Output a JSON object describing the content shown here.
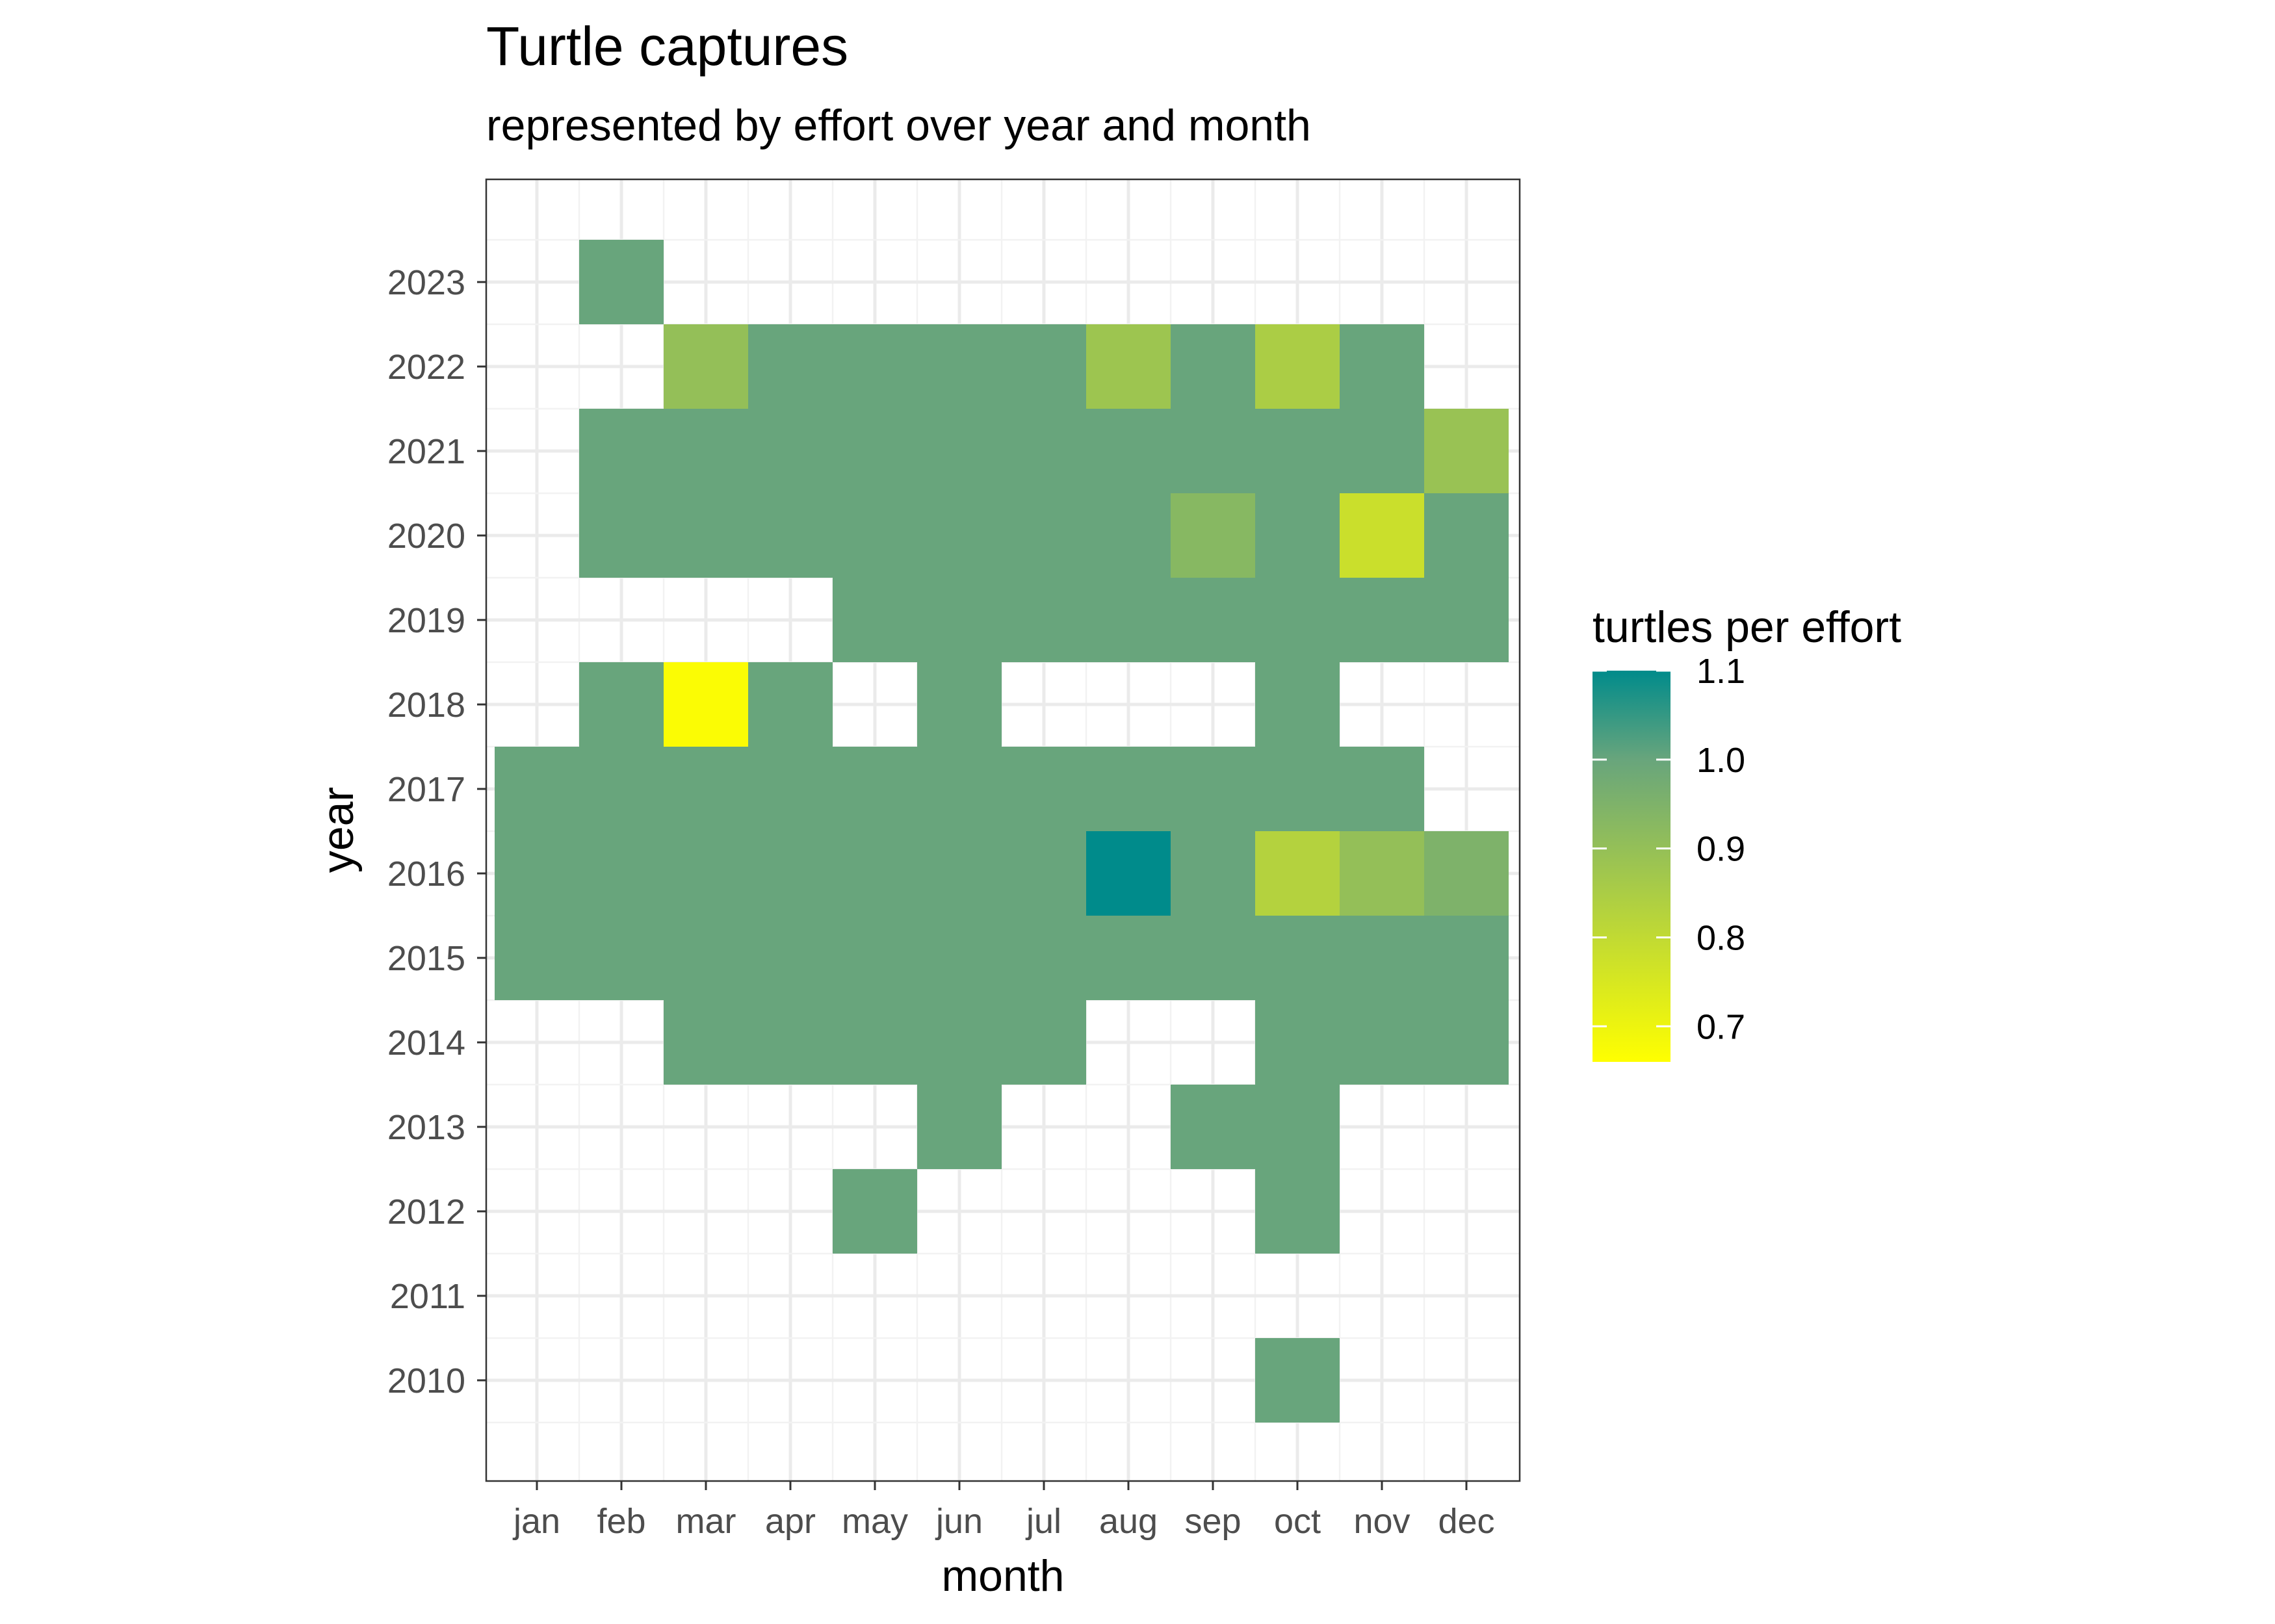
{
  "chart_data": {
    "type": "heatmap",
    "title": "Turtle captures",
    "subtitle": "represented by effort over year and month",
    "xlabel": "month",
    "ylabel": "year",
    "x_categories": [
      "jan",
      "feb",
      "mar",
      "apr",
      "may",
      "jun",
      "jul",
      "aug",
      "sep",
      "oct",
      "nov",
      "dec"
    ],
    "y_categories": [
      2010,
      2011,
      2012,
      2013,
      2014,
      2015,
      2016,
      2017,
      2018,
      2019,
      2020,
      2021,
      2022,
      2023
    ],
    "legend": {
      "title": "turtles per effort",
      "min": 0.66,
      "max": 1.1,
      "ticks": [
        1.1,
        1.0,
        0.9,
        0.8,
        0.7
      ],
      "colors": [
        "#ffff00",
        "#68a57c",
        "#008b8b"
      ]
    },
    "grid": true,
    "legend_position": "right",
    "cells": [
      {
        "year": 2023,
        "month": "feb",
        "value": 1.0
      },
      {
        "year": 2022,
        "month": "mar",
        "value": 0.9
      },
      {
        "year": 2022,
        "month": "apr",
        "value": 1.0
      },
      {
        "year": 2022,
        "month": "may",
        "value": 1.0
      },
      {
        "year": 2022,
        "month": "jun",
        "value": 1.0
      },
      {
        "year": 2022,
        "month": "jul",
        "value": 1.0
      },
      {
        "year": 2022,
        "month": "aug",
        "value": 0.88
      },
      {
        "year": 2022,
        "month": "sep",
        "value": 1.0
      },
      {
        "year": 2022,
        "month": "oct",
        "value": 0.85
      },
      {
        "year": 2022,
        "month": "nov",
        "value": 1.0
      },
      {
        "year": 2021,
        "month": "feb",
        "value": 1.0
      },
      {
        "year": 2021,
        "month": "mar",
        "value": 1.0
      },
      {
        "year": 2021,
        "month": "apr",
        "value": 1.0
      },
      {
        "year": 2021,
        "month": "may",
        "value": 1.0
      },
      {
        "year": 2021,
        "month": "jun",
        "value": 1.0
      },
      {
        "year": 2021,
        "month": "jul",
        "value": 1.0
      },
      {
        "year": 2021,
        "month": "aug",
        "value": 1.0
      },
      {
        "year": 2021,
        "month": "sep",
        "value": 1.0
      },
      {
        "year": 2021,
        "month": "oct",
        "value": 1.0
      },
      {
        "year": 2021,
        "month": "nov",
        "value": 1.0
      },
      {
        "year": 2021,
        "month": "dec",
        "value": 0.89
      },
      {
        "year": 2020,
        "month": "feb",
        "value": 1.0
      },
      {
        "year": 2020,
        "month": "mar",
        "value": 1.0
      },
      {
        "year": 2020,
        "month": "apr",
        "value": 1.0
      },
      {
        "year": 2020,
        "month": "may",
        "value": 1.0
      },
      {
        "year": 2020,
        "month": "jun",
        "value": 1.0
      },
      {
        "year": 2020,
        "month": "jul",
        "value": 1.0
      },
      {
        "year": 2020,
        "month": "aug",
        "value": 1.0
      },
      {
        "year": 2020,
        "month": "sep",
        "value": 0.93
      },
      {
        "year": 2020,
        "month": "oct",
        "value": 1.0
      },
      {
        "year": 2020,
        "month": "nov",
        "value": 0.78
      },
      {
        "year": 2020,
        "month": "dec",
        "value": 1.0
      },
      {
        "year": 2019,
        "month": "may",
        "value": 1.0
      },
      {
        "year": 2019,
        "month": "jun",
        "value": 1.0
      },
      {
        "year": 2019,
        "month": "jul",
        "value": 1.0
      },
      {
        "year": 2019,
        "month": "aug",
        "value": 1.0
      },
      {
        "year": 2019,
        "month": "sep",
        "value": 1.0
      },
      {
        "year": 2019,
        "month": "oct",
        "value": 1.0
      },
      {
        "year": 2019,
        "month": "nov",
        "value": 1.0
      },
      {
        "year": 2019,
        "month": "dec",
        "value": 1.0
      },
      {
        "year": 2018,
        "month": "feb",
        "value": 1.0
      },
      {
        "year": 2018,
        "month": "mar",
        "value": 0.67
      },
      {
        "year": 2018,
        "month": "apr",
        "value": 1.0
      },
      {
        "year": 2018,
        "month": "jun",
        "value": 1.0
      },
      {
        "year": 2018,
        "month": "oct",
        "value": 1.0
      },
      {
        "year": 2017,
        "month": "jan",
        "value": 1.0
      },
      {
        "year": 2017,
        "month": "feb",
        "value": 1.0
      },
      {
        "year": 2017,
        "month": "mar",
        "value": 1.0
      },
      {
        "year": 2017,
        "month": "apr",
        "value": 1.0
      },
      {
        "year": 2017,
        "month": "may",
        "value": 1.0
      },
      {
        "year": 2017,
        "month": "jun",
        "value": 1.0
      },
      {
        "year": 2017,
        "month": "jul",
        "value": 1.0
      },
      {
        "year": 2017,
        "month": "aug",
        "value": 1.0
      },
      {
        "year": 2017,
        "month": "sep",
        "value": 1.0
      },
      {
        "year": 2017,
        "month": "oct",
        "value": 1.0
      },
      {
        "year": 2017,
        "month": "nov",
        "value": 1.0
      },
      {
        "year": 2016,
        "month": "jan",
        "value": 1.0
      },
      {
        "year": 2016,
        "month": "feb",
        "value": 1.0
      },
      {
        "year": 2016,
        "month": "mar",
        "value": 1.0
      },
      {
        "year": 2016,
        "month": "apr",
        "value": 1.0
      },
      {
        "year": 2016,
        "month": "may",
        "value": 1.0
      },
      {
        "year": 2016,
        "month": "jun",
        "value": 1.0
      },
      {
        "year": 2016,
        "month": "jul",
        "value": 1.0
      },
      {
        "year": 2016,
        "month": "aug",
        "value": 1.1
      },
      {
        "year": 2016,
        "month": "sep",
        "value": 1.0
      },
      {
        "year": 2016,
        "month": "oct",
        "value": 0.83
      },
      {
        "year": 2016,
        "month": "nov",
        "value": 0.9
      },
      {
        "year": 2016,
        "month": "dec",
        "value": 0.95
      },
      {
        "year": 2015,
        "month": "jan",
        "value": 1.0
      },
      {
        "year": 2015,
        "month": "feb",
        "value": 1.0
      },
      {
        "year": 2015,
        "month": "mar",
        "value": 1.0
      },
      {
        "year": 2015,
        "month": "apr",
        "value": 1.0
      },
      {
        "year": 2015,
        "month": "may",
        "value": 1.0
      },
      {
        "year": 2015,
        "month": "jun",
        "value": 1.0
      },
      {
        "year": 2015,
        "month": "jul",
        "value": 1.0
      },
      {
        "year": 2015,
        "month": "aug",
        "value": 1.0
      },
      {
        "year": 2015,
        "month": "sep",
        "value": 1.0
      },
      {
        "year": 2015,
        "month": "oct",
        "value": 1.0
      },
      {
        "year": 2015,
        "month": "nov",
        "value": 1.0
      },
      {
        "year": 2015,
        "month": "dec",
        "value": 1.0
      },
      {
        "year": 2014,
        "month": "mar",
        "value": 1.0
      },
      {
        "year": 2014,
        "month": "apr",
        "value": 1.0
      },
      {
        "year": 2014,
        "month": "may",
        "value": 1.0
      },
      {
        "year": 2014,
        "month": "jun",
        "value": 1.0
      },
      {
        "year": 2014,
        "month": "jul",
        "value": 1.0
      },
      {
        "year": 2014,
        "month": "oct",
        "value": 1.0
      },
      {
        "year": 2014,
        "month": "nov",
        "value": 1.0
      },
      {
        "year": 2014,
        "month": "dec",
        "value": 1.0
      },
      {
        "year": 2013,
        "month": "jun",
        "value": 1.0
      },
      {
        "year": 2013,
        "month": "sep",
        "value": 1.0
      },
      {
        "year": 2013,
        "month": "oct",
        "value": 1.0
      },
      {
        "year": 2012,
        "month": "may",
        "value": 1.0
      },
      {
        "year": 2012,
        "month": "oct",
        "value": 1.0
      },
      {
        "year": 2010,
        "month": "oct",
        "value": 1.0
      }
    ]
  }
}
